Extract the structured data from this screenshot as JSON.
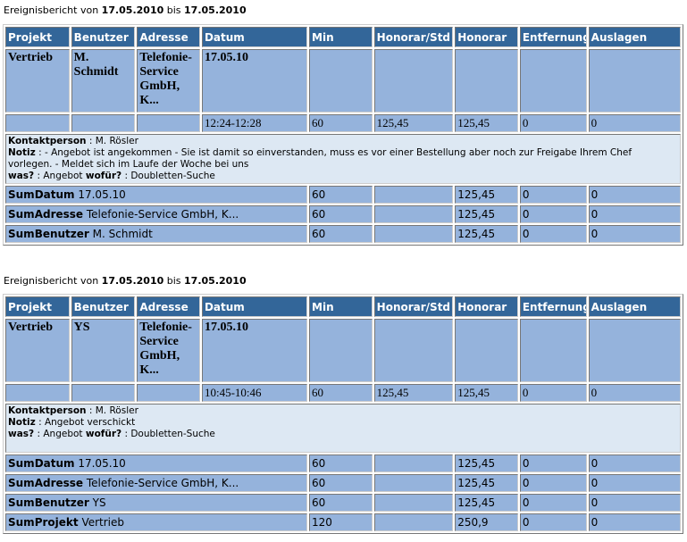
{
  "columns": [
    "Projekt",
    "Benutzer",
    "Adresse",
    "Datum",
    "Min",
    "Honorar/Std",
    "Honorar",
    "Entfernung",
    "Auslagen"
  ],
  "labels": {
    "title_prefix": "Ereignisbericht von ",
    "title_mid": " bis ",
    "kontakt": "Kontaktperson",
    "notiz": "Notiz",
    "was": "was?",
    "wofuer": "wofür?",
    "sep": " : "
  },
  "reports": [
    {
      "from": "17.05.2010",
      "to": "17.05.2010",
      "entry": {
        "projekt": "Vertrieb",
        "benutzer": "M. Schmidt",
        "adresse": "Telefonie-Service GmbH, K...",
        "datum": "17.05.10",
        "zeit": "12:24-12:28",
        "min": "60",
        "honorar_std": "125,45",
        "honorar": "125,45",
        "entfernung": "0",
        "auslagen": "0"
      },
      "notes": {
        "kontakt": "M. Rösler",
        "notiz": "- Angebot ist angekommen - Sie ist damit so einverstanden, muss es vor einer Bestellung aber noch zur Freigabe Ihrem Chef vorlegen. - Meldet sich im Laufe der Woche bei uns",
        "was": "Angebot",
        "wofuer": "Doubletten-Suche"
      },
      "sums": [
        {
          "label": "SumDatum",
          "value": "17.05.10",
          "min": "60",
          "honorar": "125,45",
          "entfernung": "0",
          "auslagen": "0"
        },
        {
          "label": "SumAdresse",
          "value": "Telefonie-Service GmbH, K...",
          "min": "60",
          "honorar": "125,45",
          "entfernung": "0",
          "auslagen": "0"
        },
        {
          "label": "SumBenutzer",
          "value": "M. Schmidt",
          "min": "60",
          "honorar": "125,45",
          "entfernung": "0",
          "auslagen": "0"
        }
      ]
    },
    {
      "from": "17.05.2010",
      "to": "17.05.2010",
      "entry": {
        "projekt": "Vertrieb",
        "benutzer": "YS",
        "adresse": "Telefonie-Service GmbH, K...",
        "datum": "17.05.10",
        "zeit": "10:45-10:46",
        "min": "60",
        "honorar_std": "125,45",
        "honorar": "125,45",
        "entfernung": "0",
        "auslagen": "0"
      },
      "notes": {
        "kontakt": "M. Rösler",
        "notiz": "Angebot verschickt",
        "was": "Angebot",
        "wofuer": "Doubletten-Suche"
      },
      "sums": [
        {
          "label": "SumDatum",
          "value": "17.05.10",
          "min": "60",
          "honorar": "125,45",
          "entfernung": "0",
          "auslagen": "0"
        },
        {
          "label": "SumAdresse",
          "value": "Telefonie-Service GmbH, K...",
          "min": "60",
          "honorar": "125,45",
          "entfernung": "0",
          "auslagen": "0"
        },
        {
          "label": "SumBenutzer",
          "value": "YS",
          "min": "60",
          "honorar": "125,45",
          "entfernung": "0",
          "auslagen": "0"
        },
        {
          "label": "SumProjekt",
          "value": "Vertrieb",
          "min": "120",
          "honorar": "250,9",
          "entfernung": "0",
          "auslagen": "0"
        }
      ]
    }
  ]
}
